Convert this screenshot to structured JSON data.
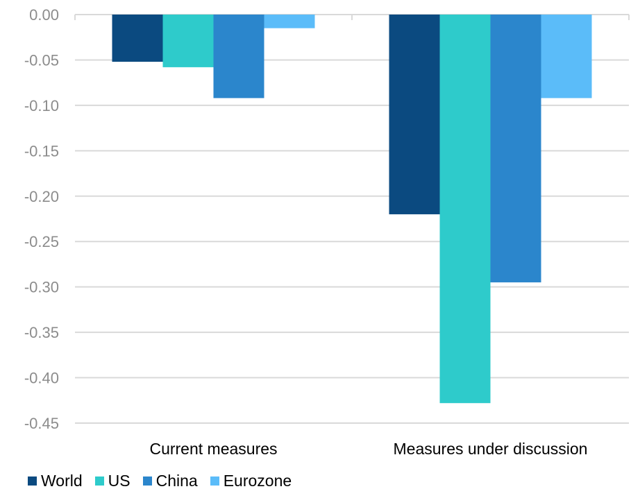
{
  "chart_data": {
    "type": "bar",
    "categories": [
      "Current measures",
      "Measures under discussion"
    ],
    "series": [
      {
        "name": "World",
        "values": [
          -0.052,
          -0.22
        ],
        "color": "#0b4a80"
      },
      {
        "name": "US",
        "values": [
          -0.058,
          -0.428
        ],
        "color": "#2ecbcb"
      },
      {
        "name": "China",
        "values": [
          -0.092,
          -0.295
        ],
        "color": "#2b86cc"
      },
      {
        "name": "Eurozone",
        "values": [
          -0.015,
          -0.092
        ],
        "color": "#5bbcf9"
      }
    ],
    "yticks": [
      "0.00",
      "-0.05",
      "-0.10",
      "-0.15",
      "-0.20",
      "-0.25",
      "-0.30",
      "-0.35",
      "-0.40",
      "-0.45"
    ],
    "ylim": [
      -0.45,
      0.0
    ],
    "grid": true,
    "legend": "bottom-left"
  }
}
